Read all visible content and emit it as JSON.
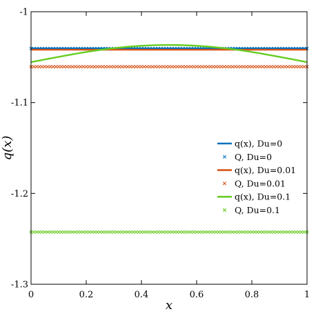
{
  "chart_data": {
    "type": "line",
    "title": "",
    "xlabel": "x",
    "ylabel": "q(x)",
    "xlim": [
      0,
      1
    ],
    "ylim": [
      -1.3,
      -1.0
    ],
    "grid": false,
    "legend_position": "right",
    "x_ticks": [
      0,
      0.2,
      0.4,
      0.6,
      0.8,
      1
    ],
    "x_tick_labels": [
      "0",
      "0.2",
      "0.4",
      "0.6",
      "0.8",
      "1"
    ],
    "y_ticks": [
      -1.0,
      -1.1,
      -1.2,
      -1.3
    ],
    "y_tick_labels": [
      "-1",
      "-1.1",
      "-1.2",
      "-1.3"
    ],
    "colors": {
      "Du=0": "#0072BD",
      "Du=0.01": "#D95319",
      "Du=0.1": "#66CC22"
    },
    "series": [
      {
        "name": "q(x), Du=0",
        "style": "line",
        "color": "#0072BD",
        "x": [
          0,
          0.25,
          0.5,
          0.75,
          1
        ],
        "y": [
          -1.0405,
          -1.0405,
          -1.0405,
          -1.0405,
          -1.0405
        ]
      },
      {
        "name": "Q, Du=0",
        "style": "marker-x",
        "color": "#0072BD",
        "x_range": [
          0,
          1
        ],
        "constant": -1.0405
      },
      {
        "name": "q(x), Du=0.01",
        "style": "line",
        "color": "#D95319",
        "x": [
          0,
          0.25,
          0.5,
          0.75,
          1
        ],
        "y": [
          -1.0418,
          -1.0418,
          -1.0418,
          -1.0418,
          -1.0418
        ]
      },
      {
        "name": "Q, Du=0.01",
        "style": "marker-x",
        "color": "#D95319",
        "x_range": [
          0,
          1
        ],
        "constant": -1.0605
      },
      {
        "name": "q(x), Du=0.1",
        "style": "line",
        "color": "#66CC22",
        "x": [
          0,
          0.1,
          0.2,
          0.3,
          0.4,
          0.5,
          0.6,
          0.7,
          0.8,
          0.9,
          1
        ],
        "y": [
          -1.0555,
          -1.0497,
          -1.0443,
          -1.0401,
          -1.0375,
          -1.0366,
          -1.0375,
          -1.0401,
          -1.0443,
          -1.0497,
          -1.0555
        ]
      },
      {
        "name": "Q, Du=0.1",
        "style": "marker-x",
        "color": "#66CC22",
        "x_range": [
          0,
          1
        ],
        "constant": -1.2425
      }
    ],
    "legend": [
      {
        "label": "q(x), Du=0",
        "kind": "line",
        "color": "#0072BD"
      },
      {
        "label": "Q, Du=0",
        "kind": "marker",
        "color": "#0072BD"
      },
      {
        "label": "q(x), Du=0.01",
        "kind": "line",
        "color": "#D95319"
      },
      {
        "label": "Q, Du=0.01",
        "kind": "marker",
        "color": "#D95319"
      },
      {
        "label": "q(x), Du=0.1",
        "kind": "line",
        "color": "#66CC22"
      },
      {
        "label": "Q, Du=0.1",
        "kind": "marker",
        "color": "#66CC22"
      }
    ]
  }
}
